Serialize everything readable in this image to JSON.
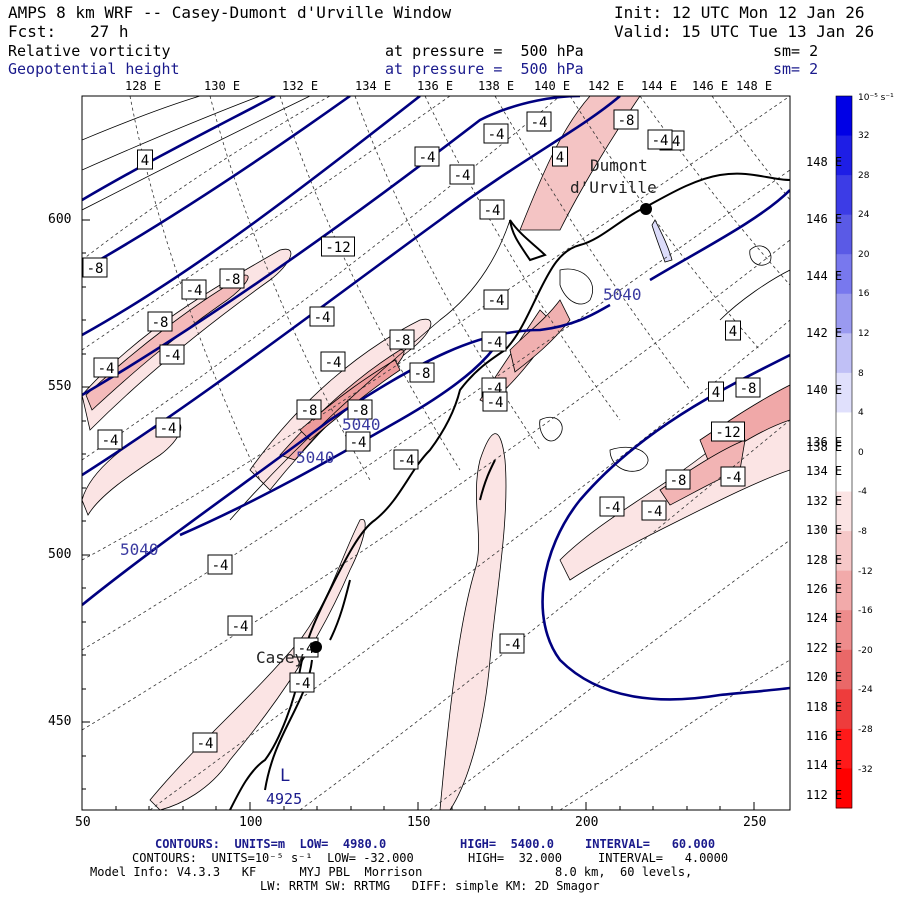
{
  "header": {
    "title": "AMPS 8 km WRF -- Casey-Dumont d'Urville Window",
    "init": "Init: 12 UTC Mon 12 Jan 26",
    "fcst_label": "Fcst:",
    "fcst_value": "27 h",
    "valid": "Valid: 15 UTC Tue 13 Jan 26",
    "field1_name": "Relative vorticity",
    "field1_level": "at pressure =  500 hPa",
    "field1_sm": "sm= 2",
    "field2_name": "Geopotential height",
    "field2_level": "at pressure =  500 hPa",
    "field2_sm": "sm= 2"
  },
  "lon_labels_top": [
    "128 E",
    "130 E",
    "132 E",
    "134 E",
    "136 E",
    "138 E",
    "140 E",
    "142 E",
    "144 E",
    "146 E",
    "148 E"
  ],
  "lat_labels_right": [
    "148 E",
    "146 E",
    "144 E",
    "142 E",
    "140 E",
    "138 E",
    "136 E",
    "134 E",
    "132 E",
    "130 E",
    "128 E",
    "126 E",
    "124 E",
    "122 E",
    "120 E",
    "118 E",
    "116 E",
    "114 E",
    "112 E"
  ],
  "x_axis_labels": [
    "50",
    "100",
    "150",
    "200",
    "250"
  ],
  "y_axis_labels": [
    "600",
    "550",
    "500",
    "450"
  ],
  "colorbar": {
    "unit": "10⁻⁵ s⁻¹",
    "labels": [
      "32",
      "28",
      "24",
      "20",
      "16",
      "12",
      "8",
      "4",
      "0",
      "-4",
      "-8",
      "-12",
      "-16",
      "-20",
      "-24",
      "-28",
      "-32"
    ],
    "colors": [
      "#0000e6",
      "#1e1ee6",
      "#3c3ce6",
      "#5a5ae6",
      "#7878ee",
      "#9a9af0",
      "#c0c0f6",
      "#e0e0fc",
      "#ffffff",
      "#ffffff",
      "#fbe4e4",
      "#f6c8c8",
      "#f2aaaa",
      "#ee8c8c",
      "#ea6868",
      "#ee3c3c",
      "#ff1a1a",
      "#ff0000"
    ]
  },
  "places": {
    "dumont": "Dumont",
    "durville": "d'Urville",
    "casey": "Casey",
    "low_letter": "L",
    "low_value": "4925"
  },
  "height_labels": [
    "5040",
    "5040",
    "5040",
    "5040"
  ],
  "vort_labels": [
    "4",
    "-4",
    "-8",
    "-4",
    "-4",
    "-4",
    "-4",
    "4",
    "-4",
    "-8",
    "-4",
    "-12",
    "-8",
    "-8",
    "-4",
    "-4",
    "-4",
    "-8",
    "-4",
    "-4",
    "-4",
    "-8",
    "-4",
    "-8",
    "-8",
    "-4",
    "-4",
    "-4",
    "-4",
    "-4",
    "4",
    "4",
    "-8",
    "-12",
    "-4",
    "-8",
    "-4",
    "-4",
    "-4",
    "-4",
    "-4",
    "-4",
    "-4",
    "-4",
    "-4"
  ],
  "footer": {
    "line1a": "CONTOURS:  UNITS=m  LOW=  4980.0",
    "line1b": "HIGH=  5400.0",
    "line1c": "INTERVAL=   60.000",
    "line2a": "CONTOURS:  UNITS=10⁻⁵ s⁻¹  LOW= -32.000",
    "line2b": "HIGH=  32.000",
    "line2c": "INTERVAL=   4.0000",
    "line3a": "Model Info: V4.3.3   KF      MYJ PBL  Morrison",
    "line3b": "8.0 km,  60 levels,",
    "line4": "LW: RRTM SW: RRTMG   DIFF: simple KM: 2D Smagor"
  }
}
